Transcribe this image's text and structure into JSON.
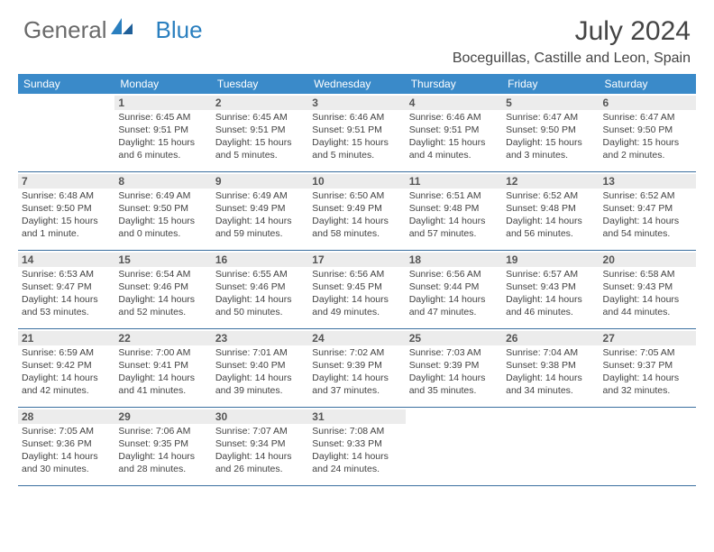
{
  "logo": {
    "part1": "General",
    "part2": "Blue"
  },
  "title": "July 2024",
  "location": "Boceguillas, Castille and Leon, Spain",
  "colors": {
    "header_bar": "#3a8ac9",
    "week_divider": "#3a6fa0",
    "daynum_bg": "#ececec",
    "text": "#424242"
  },
  "daysOfWeek": [
    "Sunday",
    "Monday",
    "Tuesday",
    "Wednesday",
    "Thursday",
    "Friday",
    "Saturday"
  ],
  "weeks": [
    [
      {
        "n": "",
        "sr": "",
        "ss": "",
        "dl": ""
      },
      {
        "n": "1",
        "sr": "Sunrise: 6:45 AM",
        "ss": "Sunset: 9:51 PM",
        "dl": "Daylight: 15 hours and 6 minutes."
      },
      {
        "n": "2",
        "sr": "Sunrise: 6:45 AM",
        "ss": "Sunset: 9:51 PM",
        "dl": "Daylight: 15 hours and 5 minutes."
      },
      {
        "n": "3",
        "sr": "Sunrise: 6:46 AM",
        "ss": "Sunset: 9:51 PM",
        "dl": "Daylight: 15 hours and 5 minutes."
      },
      {
        "n": "4",
        "sr": "Sunrise: 6:46 AM",
        "ss": "Sunset: 9:51 PM",
        "dl": "Daylight: 15 hours and 4 minutes."
      },
      {
        "n": "5",
        "sr": "Sunrise: 6:47 AM",
        "ss": "Sunset: 9:50 PM",
        "dl": "Daylight: 15 hours and 3 minutes."
      },
      {
        "n": "6",
        "sr": "Sunrise: 6:47 AM",
        "ss": "Sunset: 9:50 PM",
        "dl": "Daylight: 15 hours and 2 minutes."
      }
    ],
    [
      {
        "n": "7",
        "sr": "Sunrise: 6:48 AM",
        "ss": "Sunset: 9:50 PM",
        "dl": "Daylight: 15 hours and 1 minute."
      },
      {
        "n": "8",
        "sr": "Sunrise: 6:49 AM",
        "ss": "Sunset: 9:50 PM",
        "dl": "Daylight: 15 hours and 0 minutes."
      },
      {
        "n": "9",
        "sr": "Sunrise: 6:49 AM",
        "ss": "Sunset: 9:49 PM",
        "dl": "Daylight: 14 hours and 59 minutes."
      },
      {
        "n": "10",
        "sr": "Sunrise: 6:50 AM",
        "ss": "Sunset: 9:49 PM",
        "dl": "Daylight: 14 hours and 58 minutes."
      },
      {
        "n": "11",
        "sr": "Sunrise: 6:51 AM",
        "ss": "Sunset: 9:48 PM",
        "dl": "Daylight: 14 hours and 57 minutes."
      },
      {
        "n": "12",
        "sr": "Sunrise: 6:52 AM",
        "ss": "Sunset: 9:48 PM",
        "dl": "Daylight: 14 hours and 56 minutes."
      },
      {
        "n": "13",
        "sr": "Sunrise: 6:52 AM",
        "ss": "Sunset: 9:47 PM",
        "dl": "Daylight: 14 hours and 54 minutes."
      }
    ],
    [
      {
        "n": "14",
        "sr": "Sunrise: 6:53 AM",
        "ss": "Sunset: 9:47 PM",
        "dl": "Daylight: 14 hours and 53 minutes."
      },
      {
        "n": "15",
        "sr": "Sunrise: 6:54 AM",
        "ss": "Sunset: 9:46 PM",
        "dl": "Daylight: 14 hours and 52 minutes."
      },
      {
        "n": "16",
        "sr": "Sunrise: 6:55 AM",
        "ss": "Sunset: 9:46 PM",
        "dl": "Daylight: 14 hours and 50 minutes."
      },
      {
        "n": "17",
        "sr": "Sunrise: 6:56 AM",
        "ss": "Sunset: 9:45 PM",
        "dl": "Daylight: 14 hours and 49 minutes."
      },
      {
        "n": "18",
        "sr": "Sunrise: 6:56 AM",
        "ss": "Sunset: 9:44 PM",
        "dl": "Daylight: 14 hours and 47 minutes."
      },
      {
        "n": "19",
        "sr": "Sunrise: 6:57 AM",
        "ss": "Sunset: 9:43 PM",
        "dl": "Daylight: 14 hours and 46 minutes."
      },
      {
        "n": "20",
        "sr": "Sunrise: 6:58 AM",
        "ss": "Sunset: 9:43 PM",
        "dl": "Daylight: 14 hours and 44 minutes."
      }
    ],
    [
      {
        "n": "21",
        "sr": "Sunrise: 6:59 AM",
        "ss": "Sunset: 9:42 PM",
        "dl": "Daylight: 14 hours and 42 minutes."
      },
      {
        "n": "22",
        "sr": "Sunrise: 7:00 AM",
        "ss": "Sunset: 9:41 PM",
        "dl": "Daylight: 14 hours and 41 minutes."
      },
      {
        "n": "23",
        "sr": "Sunrise: 7:01 AM",
        "ss": "Sunset: 9:40 PM",
        "dl": "Daylight: 14 hours and 39 minutes."
      },
      {
        "n": "24",
        "sr": "Sunrise: 7:02 AM",
        "ss": "Sunset: 9:39 PM",
        "dl": "Daylight: 14 hours and 37 minutes."
      },
      {
        "n": "25",
        "sr": "Sunrise: 7:03 AM",
        "ss": "Sunset: 9:39 PM",
        "dl": "Daylight: 14 hours and 35 minutes."
      },
      {
        "n": "26",
        "sr": "Sunrise: 7:04 AM",
        "ss": "Sunset: 9:38 PM",
        "dl": "Daylight: 14 hours and 34 minutes."
      },
      {
        "n": "27",
        "sr": "Sunrise: 7:05 AM",
        "ss": "Sunset: 9:37 PM",
        "dl": "Daylight: 14 hours and 32 minutes."
      }
    ],
    [
      {
        "n": "28",
        "sr": "Sunrise: 7:05 AM",
        "ss": "Sunset: 9:36 PM",
        "dl": "Daylight: 14 hours and 30 minutes."
      },
      {
        "n": "29",
        "sr": "Sunrise: 7:06 AM",
        "ss": "Sunset: 9:35 PM",
        "dl": "Daylight: 14 hours and 28 minutes."
      },
      {
        "n": "30",
        "sr": "Sunrise: 7:07 AM",
        "ss": "Sunset: 9:34 PM",
        "dl": "Daylight: 14 hours and 26 minutes."
      },
      {
        "n": "31",
        "sr": "Sunrise: 7:08 AM",
        "ss": "Sunset: 9:33 PM",
        "dl": "Daylight: 14 hours and 24 minutes."
      },
      {
        "n": "",
        "sr": "",
        "ss": "",
        "dl": ""
      },
      {
        "n": "",
        "sr": "",
        "ss": "",
        "dl": ""
      },
      {
        "n": "",
        "sr": "",
        "ss": "",
        "dl": ""
      }
    ]
  ]
}
